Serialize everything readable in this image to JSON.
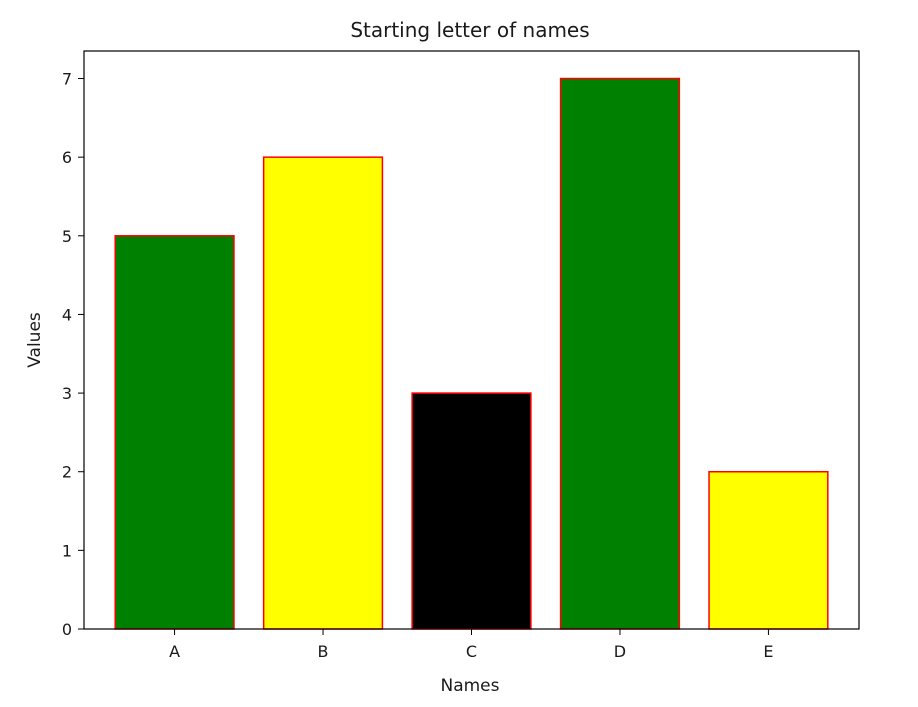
{
  "chart_data": {
    "type": "bar",
    "title": "Starting letter of names",
    "xlabel": "Names",
    "ylabel": "Values",
    "categories": [
      "A",
      "B",
      "C",
      "D",
      "E"
    ],
    "values": [
      5,
      6,
      3,
      7,
      2
    ],
    "bar_colors": [
      "#008000",
      "#ffff00",
      "#000000",
      "#008000",
      "#ffff00"
    ],
    "edge_color": "#ff0000",
    "ylim": [
      0,
      7.35
    ],
    "yticks": [
      0,
      1,
      2,
      3,
      4,
      5,
      6,
      7
    ],
    "grid": false,
    "legend": "none"
  }
}
